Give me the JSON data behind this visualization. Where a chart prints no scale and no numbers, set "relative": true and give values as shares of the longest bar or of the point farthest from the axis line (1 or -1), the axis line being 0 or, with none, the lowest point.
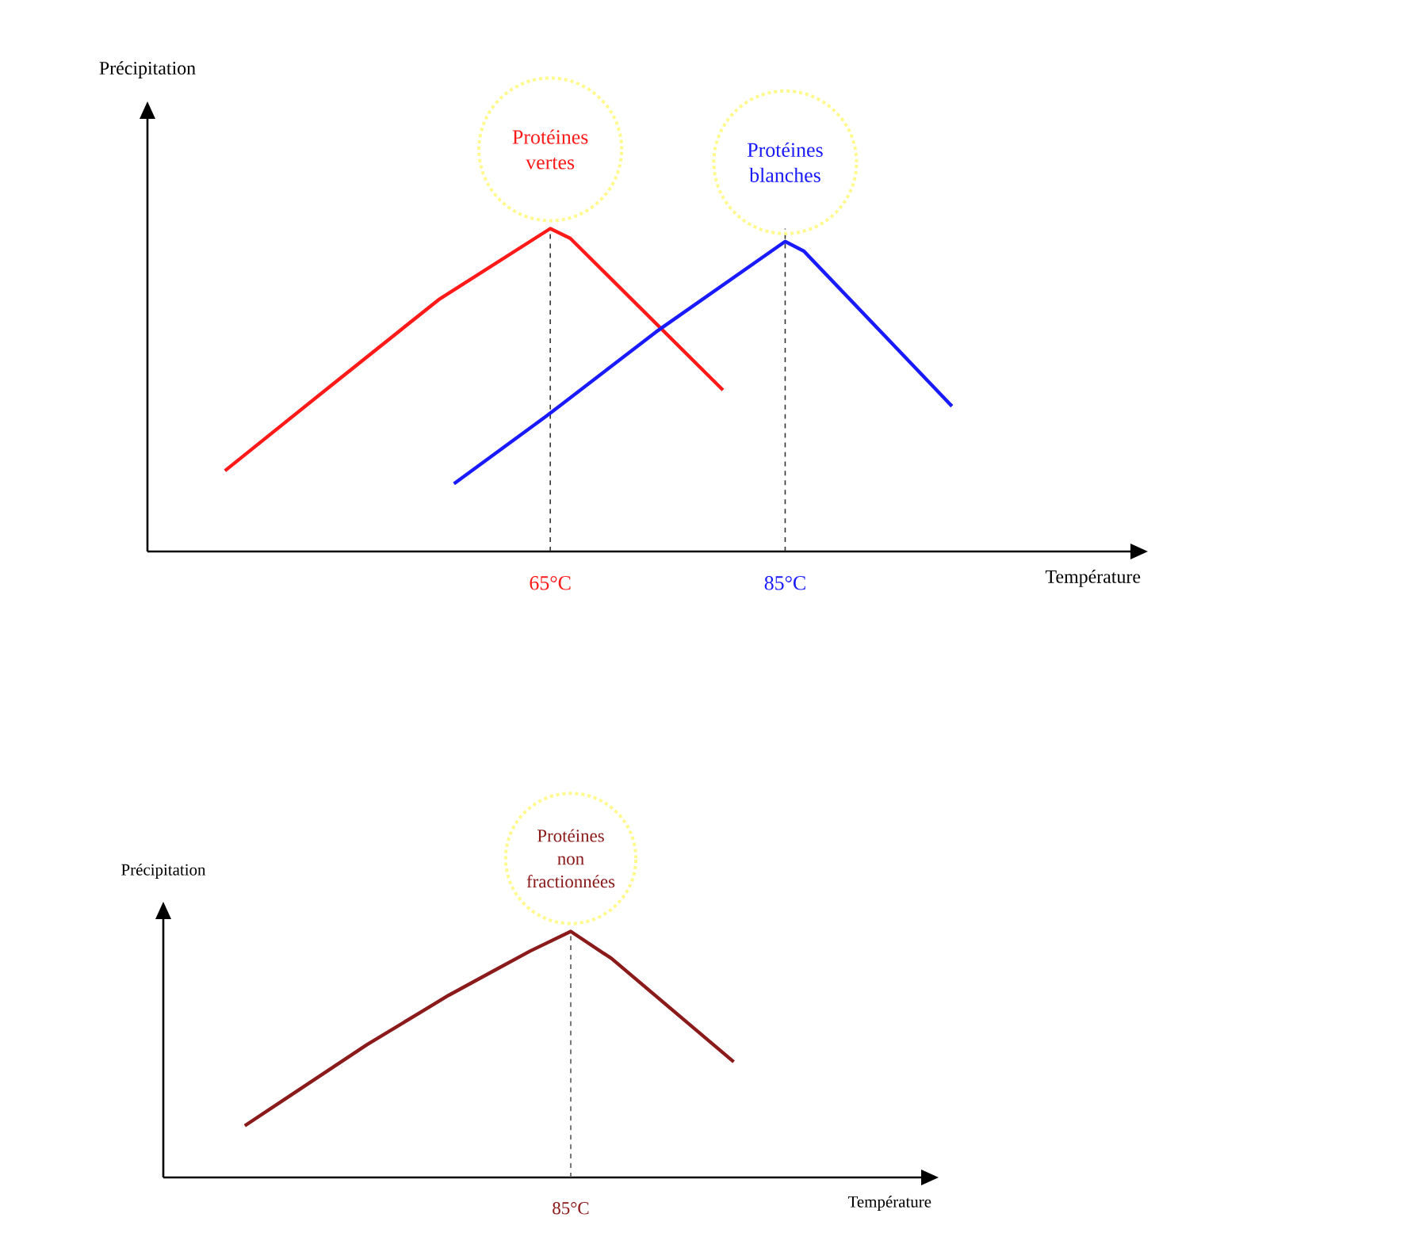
{
  "chart_data": [
    {
      "type": "line",
      "relative": true,
      "xlabel": "Température",
      "ylabel": "Précipitation",
      "xlim": [
        30.7,
        114.4
      ],
      "xticks": [
        {
          "value": 65,
          "label": "65°C"
        },
        {
          "value": 85,
          "label": "85°C"
        }
      ],
      "series": [
        {
          "name": "Protéines vertes",
          "color": "#ff1a1a",
          "x": [
            37.3,
            46.2,
            55.5,
            65,
            66.7,
            79.7
          ],
          "values": [
            0.25,
            0.51,
            0.78,
            1,
            0.97,
            0.5
          ]
        },
        {
          "name": "Protéines blanches",
          "color": "#1a1aff",
          "x": [
            56.8,
            64.7,
            74.0,
            85,
            86.6,
            99.2
          ],
          "values": [
            0.21,
            0.42,
            0.68,
            0.96,
            0.93,
            0.45
          ]
        }
      ],
      "ref_lines": [
        {
          "axis": "x",
          "value": 65,
          "color": "#333333",
          "line_style": "dashed"
        },
        {
          "axis": "x",
          "value": 85,
          "color": "#333333",
          "line_style": "dashed"
        }
      ]
    },
    {
      "type": "line",
      "relative": true,
      "xlabel": "Température",
      "ylabel": "Précipitation",
      "categories": [
        null,
        null,
        null,
        null,
        null,
        null,
        null,
        null,
        null,
        null,
        null,
        null,
        null
      ],
      "series": [
        {
          "name": "Protéines non fractionnées",
          "color": "#8b1a1a",
          "values": [
            0.21,
            0.32,
            0.43,
            0.54,
            0.64,
            0.74,
            0.83,
            0.92,
            1,
            0.89,
            0.75,
            0.61,
            0.47
          ]
        }
      ],
      "annotations": [
        "85°C"
      ]
    }
  ]
}
